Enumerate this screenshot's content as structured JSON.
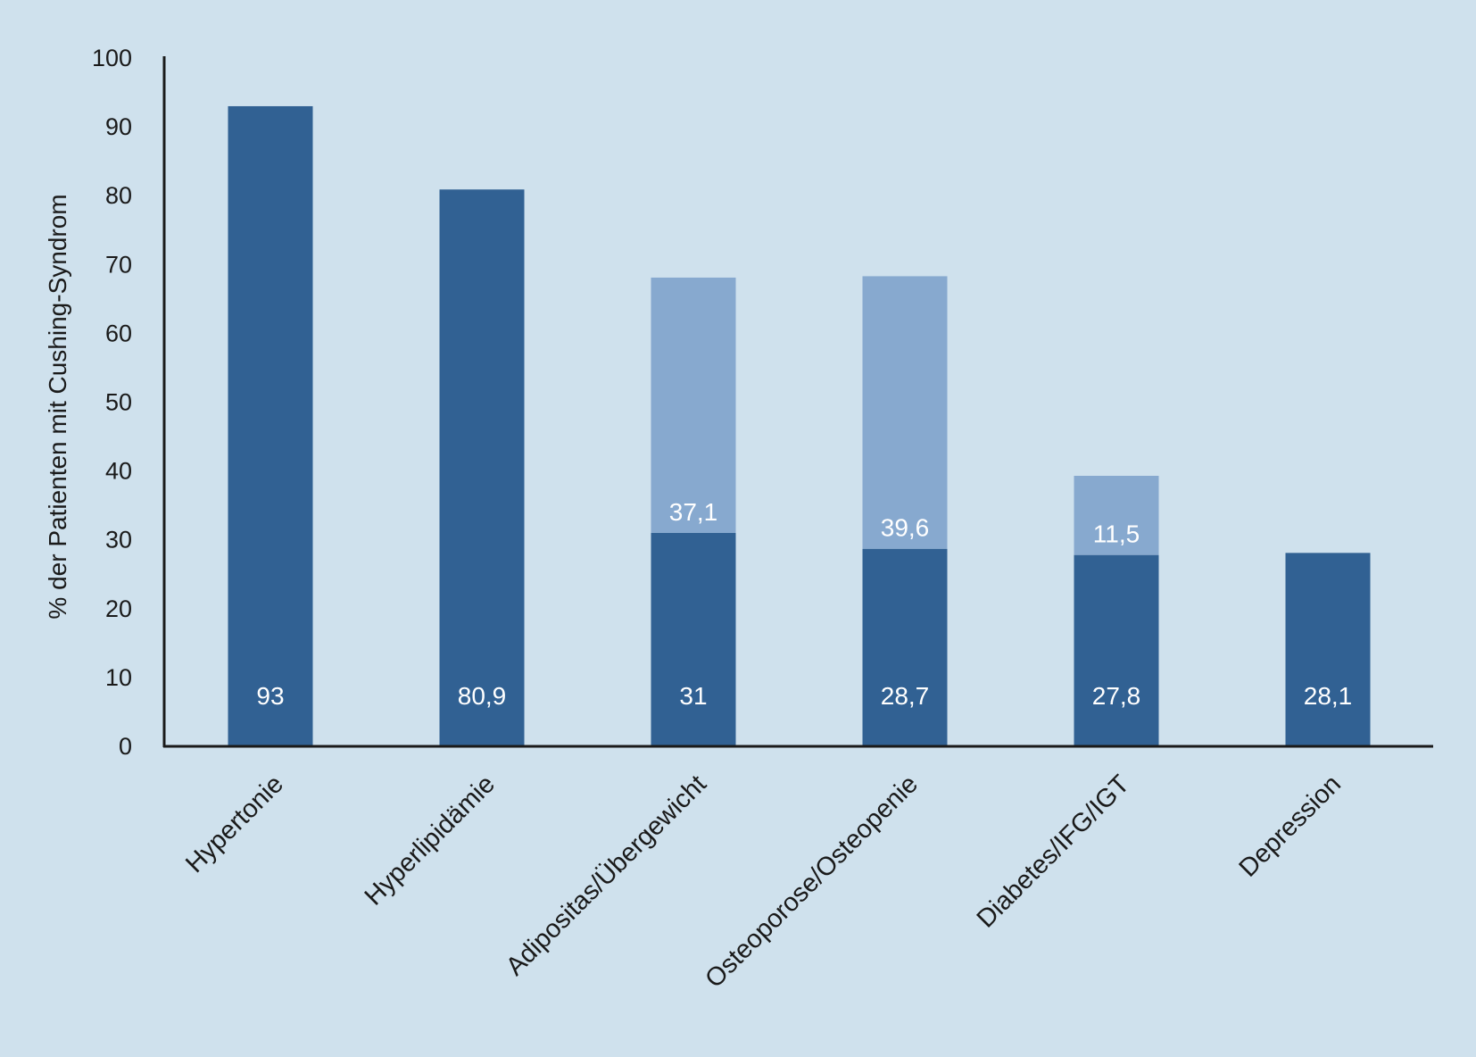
{
  "chart_data": {
    "type": "bar",
    "stacked": true,
    "categories": [
      "Hypertonie",
      "Hyperlipidämie",
      "Adipositas/Übergewicht",
      "Osteoporose/Osteopenie",
      "Diabetes/IFG/IGT",
      "Depression"
    ],
    "series": [
      {
        "values": [
          93,
          80.9,
          31,
          28.7,
          27.8,
          28.1
        ],
        "labels": [
          "93",
          "80,9",
          "31",
          "28,7",
          "27,8",
          "28,1"
        ],
        "color": "#316193"
      },
      {
        "values": [
          0,
          0,
          37.1,
          39.6,
          11.5,
          0
        ],
        "labels": [
          "",
          "",
          "37,1",
          "39,6",
          "11,5",
          ""
        ],
        "color": "#87a9cf"
      }
    ],
    "title": "",
    "xlabel": "",
    "ylabel": "% der Patienten mit Cushing-Syndrom",
    "ylim": [
      0,
      100
    ],
    "yticks": [
      "0",
      "10",
      "20",
      "30",
      "40",
      "50",
      "60",
      "70",
      "80",
      "90",
      "100"
    ],
    "grid": false,
    "legend": "none",
    "background_color": "#cfe1ed",
    "axis_color": "#1a1a1a"
  }
}
